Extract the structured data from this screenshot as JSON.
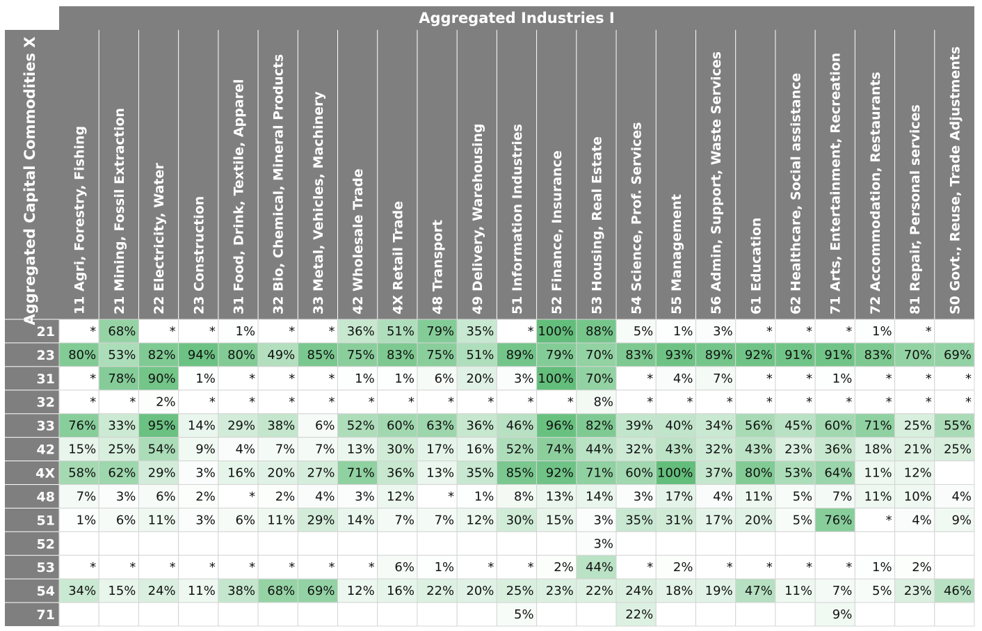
{
  "chart_data": {
    "type": "heatmap",
    "title": "Aggregated Industries I",
    "ylabel": "Aggregated Capital Commodities  X",
    "columns": [
      {
        "code": "11",
        "name": "Agri, Forestry, Fishing"
      },
      {
        "code": "21",
        "name": "Mining, Fossil Extraction"
      },
      {
        "code": "22",
        "name": "Electricity, Water"
      },
      {
        "code": "23",
        "name": "Construction"
      },
      {
        "code": "31",
        "name": "Food, Drink, Textile, Apparel"
      },
      {
        "code": "32",
        "name": "Bio, Chemical, Mineral Products"
      },
      {
        "code": "33",
        "name": "Metal, Vehicles, Machinery"
      },
      {
        "code": "42",
        "name": "Wholesale Trade"
      },
      {
        "code": "4X",
        "name": "Retail Trade"
      },
      {
        "code": "48",
        "name": "Transport"
      },
      {
        "code": "49",
        "name": "Delivery, Warehousing"
      },
      {
        "code": "51",
        "name": "Information Industries"
      },
      {
        "code": "52",
        "name": "Finance, Insurance"
      },
      {
        "code": "53",
        "name": "Housing, Real Estate"
      },
      {
        "code": "54",
        "name": "Science, Prof. Services"
      },
      {
        "code": "55",
        "name": "Management"
      },
      {
        "code": "56",
        "name": "Admin, Support, Waste Services"
      },
      {
        "code": "61",
        "name": "Education"
      },
      {
        "code": "62",
        "name": "Healthcare, Social assistance"
      },
      {
        "code": "71",
        "name": "Arts, Entertainment, Recreation"
      },
      {
        "code": "72",
        "name": "Accommodation, Restaurants"
      },
      {
        "code": "81",
        "name": "Repair, Personal services"
      },
      {
        "code": "S0",
        "name": "Govt., Reuse, Trade Adjustments"
      }
    ],
    "rows": [
      "21",
      "23",
      "31",
      "32",
      "33",
      "42",
      "4X",
      "48",
      "51",
      "52",
      "53",
      "54",
      "71"
    ],
    "values": [
      [
        "*",
        "68%",
        "*",
        "*",
        "1%",
        "*",
        "*",
        "36%",
        "51%",
        "79%",
        "35%",
        "*",
        "100%",
        "88%",
        "5%",
        "1%",
        "3%",
        "*",
        "*",
        "*",
        "1%",
        "*",
        ""
      ],
      [
        "80%",
        "53%",
        "82%",
        "94%",
        "80%",
        "49%",
        "85%",
        "75%",
        "83%",
        "75%",
        "51%",
        "89%",
        "79%",
        "70%",
        "83%",
        "93%",
        "89%",
        "92%",
        "91%",
        "91%",
        "83%",
        "70%",
        "69%"
      ],
      [
        "*",
        "78%",
        "90%",
        "1%",
        "*",
        "*",
        "*",
        "1%",
        "1%",
        "6%",
        "20%",
        "3%",
        "100%",
        "70%",
        "*",
        "4%",
        "7%",
        "*",
        "*",
        "1%",
        "*",
        "*",
        "*"
      ],
      [
        "*",
        "*",
        "2%",
        "*",
        "*",
        "*",
        "*",
        "*",
        "*",
        "*",
        "*",
        "*",
        "*",
        "8%",
        "*",
        "*",
        "*",
        "*",
        "*",
        "*",
        "*",
        "*",
        "*"
      ],
      [
        "76%",
        "33%",
        "95%",
        "14%",
        "29%",
        "38%",
        "6%",
        "52%",
        "60%",
        "63%",
        "36%",
        "46%",
        "96%",
        "82%",
        "39%",
        "40%",
        "34%",
        "56%",
        "45%",
        "60%",
        "71%",
        "25%",
        "55%"
      ],
      [
        "15%",
        "25%",
        "54%",
        "9%",
        "4%",
        "7%",
        "7%",
        "13%",
        "30%",
        "17%",
        "16%",
        "52%",
        "74%",
        "44%",
        "32%",
        "43%",
        "32%",
        "43%",
        "23%",
        "36%",
        "18%",
        "21%",
        "25%"
      ],
      [
        "58%",
        "62%",
        "29%",
        "3%",
        "16%",
        "20%",
        "27%",
        "71%",
        "36%",
        "13%",
        "35%",
        "85%",
        "92%",
        "71%",
        "60%",
        "100%",
        "37%",
        "80%",
        "53%",
        "64%",
        "11%",
        "12%",
        ""
      ],
      [
        "7%",
        "3%",
        "6%",
        "2%",
        "*",
        "2%",
        "4%",
        "3%",
        "12%",
        "*",
        "1%",
        "8%",
        "13%",
        "14%",
        "3%",
        "17%",
        "4%",
        "11%",
        "5%",
        "7%",
        "11%",
        "10%",
        "4%"
      ],
      [
        "1%",
        "6%",
        "11%",
        "3%",
        "6%",
        "11%",
        "29%",
        "14%",
        "7%",
        "7%",
        "12%",
        "30%",
        "15%",
        "3%",
        "35%",
        "31%",
        "17%",
        "20%",
        "5%",
        "76%",
        "*",
        "4%",
        "9%"
      ],
      [
        "",
        "",
        "",
        "",
        "",
        "",
        "",
        "",
        "",
        "",
        "",
        "",
        "",
        "3%",
        "",
        "",
        "",
        "",
        "",
        "",
        "",
        "",
        ""
      ],
      [
        "*",
        "*",
        "*",
        "*",
        "*",
        "*",
        "*",
        "*",
        "6%",
        "1%",
        "*",
        "*",
        "2%",
        "44%",
        "*",
        "2%",
        "*",
        "*",
        "*",
        "*",
        "1%",
        "2%",
        ""
      ],
      [
        "34%",
        "15%",
        "24%",
        "11%",
        "38%",
        "68%",
        "69%",
        "12%",
        "16%",
        "22%",
        "20%",
        "25%",
        "23%",
        "22%",
        "24%",
        "18%",
        "19%",
        "47%",
        "11%",
        "7%",
        "5%",
        "23%",
        "46%"
      ],
      [
        "",
        "",
        "",
        "",
        "",
        "",
        "",
        "",
        "",
        "",
        "",
        "5%",
        "",
        "",
        "22%",
        "",
        "",
        "",
        "",
        "9%",
        "",
        "",
        ""
      ]
    ],
    "colors": {
      "header_bg": "#7f7f7f",
      "low": "#ffffff",
      "high": "#63be7b"
    }
  }
}
